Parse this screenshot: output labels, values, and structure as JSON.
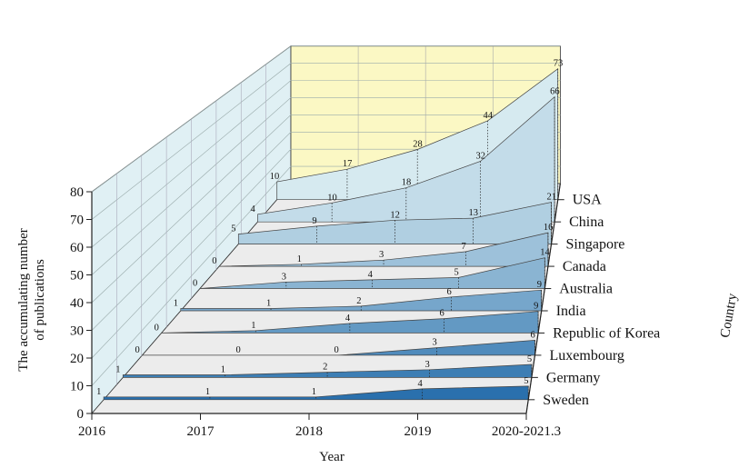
{
  "chart_data": {
    "type": "area",
    "variant": "3d-stacked-ribbon",
    "xlabel": "Year",
    "ylabel": "The accumulating number of publications",
    "zlabel": "Country",
    "categories": [
      "2016",
      "2017",
      "2018",
      "2019",
      "2020-2021.3"
    ],
    "ylim": [
      0,
      80
    ],
    "yticks": [
      0,
      10,
      20,
      30,
      40,
      50,
      60,
      70,
      80
    ],
    "series": [
      {
        "name": "USA",
        "values": [
          10,
          17,
          28,
          44,
          73
        ]
      },
      {
        "name": "China",
        "values": [
          4,
          10,
          18,
          32,
          66
        ]
      },
      {
        "name": "Singapore",
        "values": [
          5,
          9,
          12,
          13,
          21
        ]
      },
      {
        "name": "Canada",
        "values": [
          0,
          1,
          3,
          7,
          16
        ]
      },
      {
        "name": "Australia",
        "values": [
          0,
          3,
          4,
          5,
          14
        ]
      },
      {
        "name": "India",
        "values": [
          1,
          1,
          2,
          6,
          9
        ]
      },
      {
        "name": "Republic of Korea",
        "values": [
          0,
          1,
          4,
          6,
          9
        ]
      },
      {
        "name": "Luxembourg",
        "values": [
          0,
          0,
          0,
          3,
          6
        ]
      },
      {
        "name": "Germany",
        "values": [
          1,
          1,
          2,
          3,
          5
        ]
      },
      {
        "name": "Sweden",
        "values": [
          1,
          1,
          1,
          4,
          5
        ]
      }
    ],
    "colors": {
      "back_wall": "#fbf8c4",
      "side_wall": "#e0f0f4",
      "floor": "#ececec",
      "ribbon_front": "#2a70ad",
      "ribbon_back": "#d6eaf0"
    },
    "grid": true
  }
}
